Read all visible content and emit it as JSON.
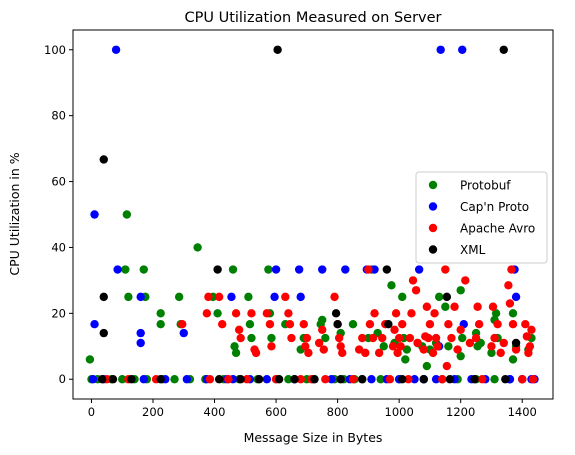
{
  "chart_data": {
    "type": "scatter",
    "title": "CPU Utilization Measured on Server",
    "xlabel": "Message Size in Bytes",
    "ylabel": "CPU Utilization in %",
    "xlim": [
      -60,
      1500
    ],
    "ylim": [
      -6,
      106
    ],
    "xticks": [
      0,
      200,
      400,
      600,
      800,
      1000,
      1200,
      1400
    ],
    "yticks": [
      0,
      20,
      40,
      60,
      80,
      100
    ],
    "grid": false,
    "legend_position": "center-right",
    "series": [
      {
        "name": "Protobuf",
        "color": "#008000",
        "points": [
          [
            -5,
            6
          ],
          [
            0,
            0
          ],
          [
            20,
            0
          ],
          [
            65,
            0
          ],
          [
            110,
            33.3
          ],
          [
            115,
            50
          ],
          [
            120,
            25
          ],
          [
            170,
            33.3
          ],
          [
            175,
            25
          ],
          [
            225,
            20
          ],
          [
            225,
            16.7
          ],
          [
            285,
            25
          ],
          [
            290,
            16.7
          ],
          [
            345,
            40
          ],
          [
            395,
            25
          ],
          [
            410,
            20
          ],
          [
            460,
            33.3
          ],
          [
            465,
            10
          ],
          [
            470,
            8
          ],
          [
            510,
            25
          ],
          [
            515,
            16.7
          ],
          [
            520,
            12.5
          ],
          [
            575,
            33.3
          ],
          [
            580,
            20
          ],
          [
            585,
            12.5
          ],
          [
            630,
            16.7
          ],
          [
            640,
            0
          ],
          [
            680,
            9
          ],
          [
            690,
            12.5
          ],
          [
            745,
            16.7
          ],
          [
            750,
            18
          ],
          [
            760,
            12.5
          ],
          [
            790,
            0
          ],
          [
            810,
            14
          ],
          [
            850,
            16.7
          ],
          [
            855,
            0
          ],
          [
            900,
            12.5
          ],
          [
            910,
            33.3
          ],
          [
            930,
            14
          ],
          [
            950,
            10
          ],
          [
            975,
            28.5
          ],
          [
            985,
            11
          ],
          [
            1010,
            25
          ],
          [
            1015,
            12.5
          ],
          [
            1020,
            6
          ],
          [
            1025,
            9
          ],
          [
            1060,
            11
          ],
          [
            1075,
            10
          ],
          [
            1090,
            4
          ],
          [
            1100,
            9
          ],
          [
            1120,
            11
          ],
          [
            1130,
            25
          ],
          [
            1150,
            22
          ],
          [
            1160,
            10
          ],
          [
            1200,
            27
          ],
          [
            1205,
            12.5
          ],
          [
            1255,
            10
          ],
          [
            1265,
            11
          ],
          [
            1310,
            18
          ],
          [
            1315,
            20
          ],
          [
            1320,
            12.5
          ],
          [
            1370,
            20
          ],
          [
            1380,
            10
          ],
          [
            1420,
            9
          ],
          [
            1430,
            12.5
          ],
          [
            1370,
            6
          ],
          [
            1300,
            8
          ],
          [
            1250,
            14
          ],
          [
            1200,
            7
          ],
          [
            1140,
            0
          ],
          [
            1080,
            0
          ],
          [
            1000,
            0
          ],
          [
            940,
            0
          ],
          [
            880,
            0
          ],
          [
            820,
            0
          ],
          [
            700,
            0
          ],
          [
            600,
            0
          ],
          [
            540,
            0
          ],
          [
            480,
            0
          ],
          [
            430,
            0
          ],
          [
            370,
            0
          ],
          [
            320,
            0
          ],
          [
            270,
            0
          ],
          [
            230,
            0
          ],
          [
            180,
            0
          ],
          [
            140,
            0
          ],
          [
            100,
            0
          ],
          [
            1190,
            0
          ],
          [
            1250,
            0
          ],
          [
            1310,
            0
          ],
          [
            1360,
            0
          ],
          [
            1400,
            0
          ]
        ]
      },
      {
        "name": "Cap'n Proto",
        "color": "#0000ff",
        "points": [
          [
            5,
            0
          ],
          [
            10,
            50
          ],
          [
            10,
            16.7
          ],
          [
            40,
            0
          ],
          [
            80,
            100
          ],
          [
            85,
            33.3
          ],
          [
            160,
            25
          ],
          [
            160,
            14
          ],
          [
            160,
            11
          ],
          [
            170,
            0
          ],
          [
            240,
            0
          ],
          [
            300,
            14
          ],
          [
            310,
            0
          ],
          [
            375,
            0
          ],
          [
            440,
            0
          ],
          [
            455,
            25
          ],
          [
            460,
            0
          ],
          [
            515,
            0
          ],
          [
            570,
            0
          ],
          [
            595,
            25
          ],
          [
            600,
            33.3
          ],
          [
            660,
            0
          ],
          [
            675,
            33.3
          ],
          [
            680,
            25
          ],
          [
            720,
            0
          ],
          [
            750,
            33.3
          ],
          [
            780,
            0
          ],
          [
            825,
            33.3
          ],
          [
            840,
            0
          ],
          [
            895,
            33.3
          ],
          [
            910,
            0
          ],
          [
            920,
            33.3
          ],
          [
            960,
            0
          ],
          [
            1000,
            0
          ],
          [
            1050,
            0
          ],
          [
            1065,
            33.3
          ],
          [
            1080,
            0
          ],
          [
            1120,
            0
          ],
          [
            1130,
            10
          ],
          [
            1135,
            100
          ],
          [
            1180,
            0
          ],
          [
            1205,
            100
          ],
          [
            1210,
            16.7
          ],
          [
            1235,
            0
          ],
          [
            1280,
            0
          ],
          [
            1360,
            0
          ],
          [
            1375,
            33.3
          ],
          [
            1380,
            25
          ],
          [
            1400,
            0
          ],
          [
            1430,
            0
          ],
          [
            1440,
            0
          ]
        ]
      },
      {
        "name": "Apache Avro",
        "color": "#ff0000",
        "points": [
          [
            50,
            0
          ],
          [
            120,
            0
          ],
          [
            210,
            0
          ],
          [
            295,
            16.7
          ],
          [
            375,
            20
          ],
          [
            380,
            25
          ],
          [
            385,
            0
          ],
          [
            415,
            25
          ],
          [
            425,
            16.7
          ],
          [
            445,
            0
          ],
          [
            470,
            20
          ],
          [
            480,
            15
          ],
          [
            485,
            12.5
          ],
          [
            505,
            0
          ],
          [
            520,
            20
          ],
          [
            530,
            9
          ],
          [
            535,
            8
          ],
          [
            570,
            20
          ],
          [
            580,
            16.7
          ],
          [
            585,
            10
          ],
          [
            600,
            0
          ],
          [
            630,
            25
          ],
          [
            640,
            20
          ],
          [
            645,
            16.7
          ],
          [
            650,
            12.5
          ],
          [
            680,
            0
          ],
          [
            690,
            16.7
          ],
          [
            695,
            10
          ],
          [
            700,
            12.5
          ],
          [
            705,
            8
          ],
          [
            715,
            0
          ],
          [
            740,
            11
          ],
          [
            750,
            15
          ],
          [
            755,
            9
          ],
          [
            760,
            0
          ],
          [
            790,
            25
          ],
          [
            800,
            16.7
          ],
          [
            805,
            12.5
          ],
          [
            810,
            10
          ],
          [
            815,
            8
          ],
          [
            850,
            0
          ],
          [
            870,
            9
          ],
          [
            880,
            12.5
          ],
          [
            890,
            8
          ],
          [
            900,
            33.3
          ],
          [
            905,
            16.7
          ],
          [
            915,
            12.5
          ],
          [
            920,
            20
          ],
          [
            935,
            8
          ],
          [
            945,
            12.5
          ],
          [
            955,
            16.7
          ],
          [
            970,
            0
          ],
          [
            980,
            10
          ],
          [
            985,
            15
          ],
          [
            990,
            20
          ],
          [
            995,
            8
          ],
          [
            1000,
            12.5
          ],
          [
            1005,
            10
          ],
          [
            1010,
            16.7
          ],
          [
            1030,
            0
          ],
          [
            1035,
            12.5
          ],
          [
            1040,
            20
          ],
          [
            1045,
            30
          ],
          [
            1055,
            27
          ],
          [
            1060,
            11
          ],
          [
            1080,
            9
          ],
          [
            1085,
            13
          ],
          [
            1090,
            22
          ],
          [
            1095,
            12.5
          ],
          [
            1100,
            16.7
          ],
          [
            1110,
            8
          ],
          [
            1115,
            20
          ],
          [
            1120,
            12.5
          ],
          [
            1125,
            10
          ],
          [
            1140,
            0
          ],
          [
            1150,
            33.3
          ],
          [
            1155,
            4
          ],
          [
            1160,
            16.7
          ],
          [
            1170,
            12.5
          ],
          [
            1180,
            22
          ],
          [
            1190,
            9
          ],
          [
            1200,
            15
          ],
          [
            1215,
            30
          ],
          [
            1230,
            11
          ],
          [
            1250,
            12.5
          ],
          [
            1255,
            22
          ],
          [
            1260,
            16.7
          ],
          [
            1270,
            0
          ],
          [
            1300,
            10
          ],
          [
            1305,
            22
          ],
          [
            1310,
            12.5
          ],
          [
            1320,
            16.7
          ],
          [
            1330,
            8
          ],
          [
            1340,
            11
          ],
          [
            1355,
            28.5
          ],
          [
            1360,
            23
          ],
          [
            1365,
            33.3
          ],
          [
            1370,
            16.7
          ],
          [
            1380,
            9
          ],
          [
            1400,
            0
          ],
          [
            1410,
            16.7
          ],
          [
            1415,
            13
          ],
          [
            1420,
            8
          ],
          [
            1425,
            10
          ],
          [
            1430,
            15
          ],
          [
            1435,
            0
          ]
        ]
      },
      {
        "name": "XML",
        "color": "#000000",
        "points": [
          [
            35,
            0
          ],
          [
            40,
            25
          ],
          [
            40,
            14
          ],
          [
            40,
            66.7
          ],
          [
            70,
            0
          ],
          [
            130,
            0
          ],
          [
            225,
            0
          ],
          [
            410,
            33.3
          ],
          [
            415,
            0
          ],
          [
            485,
            0
          ],
          [
            545,
            0
          ],
          [
            605,
            100
          ],
          [
            610,
            0
          ],
          [
            660,
            0
          ],
          [
            725,
            0
          ],
          [
            795,
            20
          ],
          [
            800,
            16.7
          ],
          [
            810,
            0
          ],
          [
            880,
            0
          ],
          [
            960,
            33.3
          ],
          [
            965,
            16.7
          ],
          [
            1010,
            0
          ],
          [
            1080,
            0
          ],
          [
            1155,
            25
          ],
          [
            1165,
            0
          ],
          [
            1245,
            0
          ],
          [
            1340,
            100
          ],
          [
            1345,
            0
          ],
          [
            1380,
            11
          ]
        ]
      }
    ]
  }
}
